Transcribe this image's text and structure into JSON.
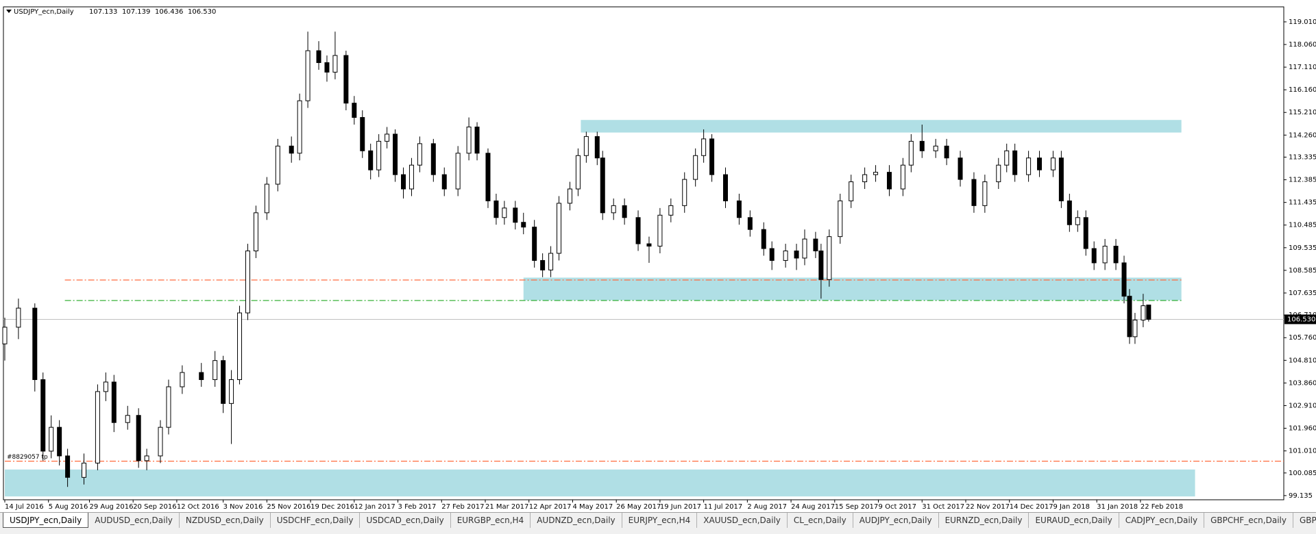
{
  "chart_data": {
    "type": "candlestick",
    "symbol": "USDJPY_ecn,Daily",
    "header_values": [
      "107.133",
      "107.139",
      "106.436",
      "106.530"
    ],
    "current_price_label": "106.530",
    "x": [
      0,
      5,
      11,
      14,
      17,
      20,
      23,
      29,
      34,
      37,
      40,
      45,
      49,
      52,
      57,
      60,
      65,
      72,
      77,
      80,
      83,
      86,
      89,
      92,
      96,
      100,
      105,
      108,
      111,
      115,
      118,
      121,
      125,
      128,
      131,
      134,
      137,
      140,
      143,
      146,
      149,
      152,
      157,
      161,
      166,
      170,
      173,
      177,
      180,
      183,
      187,
      190,
      194,
      197,
      200,
      203,
      207,
      210,
      213,
      217,
      219,
      223,
      227,
      232,
      236,
      240,
      244,
      249,
      253,
      256,
      259,
      264,
      269,
      273,
      278,
      281,
      286,
      290,
      293,
      297,
      299,
      302,
      306,
      310,
      315,
      319,
      324,
      329,
      332,
      336,
      341,
      345,
      350,
      355,
      359,
      364,
      367,
      370,
      375,
      379,
      384,
      387,
      390,
      393,
      396,
      399,
      403,
      407,
      410,
      412,
      414,
      417,
      419
    ],
    "ohlc": [
      [
        105.5,
        106.6,
        104.8,
        106.2
      ],
      [
        106.2,
        107.4,
        105.7,
        107.0
      ],
      [
        107.0,
        107.2,
        103.5,
        104.0
      ],
      [
        104.0,
        104.3,
        100.6,
        101.0
      ],
      [
        101.0,
        102.5,
        100.7,
        102.0
      ],
      [
        102.0,
        102.3,
        100.4,
        100.8
      ],
      [
        100.8,
        101.1,
        99.5,
        99.9
      ],
      [
        99.9,
        100.9,
        99.6,
        100.5
      ],
      [
        100.5,
        103.8,
        100.2,
        103.5
      ],
      [
        103.5,
        104.3,
        103.1,
        103.9
      ],
      [
        103.9,
        104.2,
        101.8,
        102.2
      ],
      [
        102.2,
        102.9,
        101.9,
        102.5
      ],
      [
        102.5,
        102.8,
        100.3,
        100.6
      ],
      [
        100.6,
        101.1,
        100.2,
        100.8
      ],
      [
        100.8,
        102.3,
        100.5,
        102.0
      ],
      [
        102.0,
        104.0,
        101.7,
        103.7
      ],
      [
        103.7,
        104.6,
        103.4,
        104.3
      ],
      [
        104.3,
        104.7,
        103.7,
        104.0
      ],
      [
        104.0,
        105.2,
        103.7,
        104.8
      ],
      [
        104.8,
        105.0,
        102.6,
        103.0
      ],
      [
        103.0,
        104.4,
        101.3,
        104.0
      ],
      [
        104.0,
        107.1,
        103.8,
        106.8
      ],
      [
        106.8,
        109.7,
        106.5,
        109.4
      ],
      [
        109.4,
        111.3,
        109.1,
        111.0
      ],
      [
        111.0,
        112.5,
        110.7,
        112.2
      ],
      [
        112.2,
        114.1,
        111.9,
        113.8
      ],
      [
        113.8,
        114.2,
        113.1,
        113.5
      ],
      [
        113.5,
        116.0,
        113.2,
        115.7
      ],
      [
        115.7,
        118.6,
        115.4,
        117.8
      ],
      [
        117.8,
        118.2,
        117.0,
        117.3
      ],
      [
        117.3,
        117.6,
        116.5,
        116.9
      ],
      [
        116.9,
        118.6,
        116.6,
        117.6
      ],
      [
        117.6,
        117.8,
        115.3,
        115.6
      ],
      [
        115.6,
        115.9,
        114.7,
        115.0
      ],
      [
        115.0,
        115.3,
        113.3,
        113.6
      ],
      [
        113.6,
        113.9,
        112.4,
        112.8
      ],
      [
        112.8,
        114.3,
        112.5,
        114.0
      ],
      [
        114.0,
        114.6,
        113.7,
        114.3
      ],
      [
        114.3,
        114.5,
        112.3,
        112.6
      ],
      [
        112.6,
        112.9,
        111.6,
        112.0
      ],
      [
        112.0,
        113.3,
        111.7,
        113.0
      ],
      [
        113.0,
        114.2,
        112.7,
        113.9
      ],
      [
        113.9,
        114.1,
        112.3,
        112.6
      ],
      [
        112.6,
        112.9,
        111.7,
        112.0
      ],
      [
        112.0,
        113.8,
        111.7,
        113.5
      ],
      [
        113.5,
        115.0,
        113.2,
        114.6
      ],
      [
        114.6,
        114.8,
        113.2,
        113.5
      ],
      [
        113.5,
        113.7,
        111.2,
        111.5
      ],
      [
        111.5,
        111.8,
        110.5,
        110.8
      ],
      [
        110.8,
        111.5,
        110.5,
        111.2
      ],
      [
        111.2,
        111.5,
        110.3,
        110.6
      ],
      [
        110.6,
        111.0,
        110.1,
        110.4
      ],
      [
        110.4,
        110.7,
        108.7,
        109.0
      ],
      [
        109.0,
        109.3,
        108.3,
        108.6
      ],
      [
        108.6,
        109.6,
        108.3,
        109.3
      ],
      [
        109.3,
        111.7,
        109.0,
        111.4
      ],
      [
        111.4,
        112.3,
        111.1,
        112.0
      ],
      [
        112.0,
        113.7,
        111.7,
        113.4
      ],
      [
        113.4,
        114.4,
        113.1,
        114.2
      ],
      [
        114.2,
        114.4,
        113.0,
        113.3
      ],
      [
        113.3,
        113.6,
        110.7,
        111.0
      ],
      [
        111.0,
        111.6,
        110.7,
        111.3
      ],
      [
        111.3,
        111.6,
        110.5,
        110.8
      ],
      [
        110.8,
        111.1,
        109.4,
        109.7
      ],
      [
        109.7,
        110.0,
        108.9,
        109.6
      ],
      [
        109.6,
        111.2,
        109.3,
        110.9
      ],
      [
        110.9,
        111.6,
        110.6,
        111.3
      ],
      [
        111.3,
        112.7,
        111.0,
        112.4
      ],
      [
        112.4,
        113.7,
        112.1,
        113.4
      ],
      [
        113.4,
        114.5,
        113.1,
        114.1
      ],
      [
        114.1,
        114.3,
        112.3,
        112.6
      ],
      [
        112.6,
        112.9,
        111.2,
        111.5
      ],
      [
        111.5,
        111.8,
        110.5,
        110.8
      ],
      [
        110.8,
        111.1,
        110.0,
        110.3
      ],
      [
        110.3,
        110.6,
        109.2,
        109.5
      ],
      [
        109.5,
        109.8,
        108.6,
        109.0
      ],
      [
        109.0,
        109.7,
        108.7,
        109.4
      ],
      [
        109.4,
        109.7,
        108.6,
        109.1
      ],
      [
        109.1,
        110.3,
        108.8,
        109.9
      ],
      [
        109.9,
        110.2,
        109.1,
        109.4
      ],
      [
        109.4,
        109.7,
        107.4,
        108.2
      ],
      [
        108.2,
        110.3,
        107.9,
        110.0
      ],
      [
        110.0,
        111.8,
        109.7,
        111.5
      ],
      [
        111.5,
        112.6,
        111.2,
        112.3
      ],
      [
        112.3,
        112.9,
        112.0,
        112.6
      ],
      [
        112.6,
        113.0,
        112.3,
        112.7
      ],
      [
        112.7,
        113.0,
        111.7,
        112.0
      ],
      [
        112.0,
        113.3,
        111.7,
        113.0
      ],
      [
        113.0,
        114.3,
        112.7,
        114.0
      ],
      [
        114.0,
        114.7,
        113.3,
        113.6
      ],
      [
        113.6,
        114.1,
        113.3,
        113.8
      ],
      [
        113.8,
        114.1,
        113.0,
        113.3
      ],
      [
        113.3,
        113.6,
        112.1,
        112.4
      ],
      [
        112.4,
        112.7,
        111.0,
        111.3
      ],
      [
        111.3,
        112.6,
        111.0,
        112.3
      ],
      [
        112.3,
        113.3,
        112.0,
        113.0
      ],
      [
        113.0,
        113.9,
        112.7,
        113.6
      ],
      [
        113.6,
        113.9,
        112.3,
        112.6
      ],
      [
        112.6,
        113.6,
        112.3,
        113.3
      ],
      [
        113.3,
        113.6,
        112.5,
        112.8
      ],
      [
        112.8,
        113.6,
        112.5,
        113.3
      ],
      [
        113.3,
        113.6,
        111.2,
        111.5
      ],
      [
        111.5,
        111.8,
        110.2,
        110.5
      ],
      [
        110.5,
        111.1,
        110.2,
        110.8
      ],
      [
        110.8,
        111.1,
        109.2,
        109.5
      ],
      [
        109.5,
        109.8,
        108.6,
        108.9
      ],
      [
        108.9,
        109.9,
        108.6,
        109.6
      ],
      [
        109.6,
        109.9,
        108.6,
        108.9
      ],
      [
        108.9,
        109.2,
        107.2,
        107.5
      ],
      [
        107.5,
        107.8,
        105.5,
        105.8
      ],
      [
        105.8,
        106.8,
        105.5,
        106.5
      ],
      [
        106.5,
        107.6,
        106.2,
        107.1
      ],
      [
        107.133,
        107.139,
        106.436,
        106.53
      ]
    ],
    "xlim": [
      -0.5,
      468.5
    ],
    "ylim": [
      98.96,
      119.64
    ],
    "xticks": [
      {
        "value": 0,
        "label": "14 Jul 2016"
      },
      {
        "value": 16,
        "label": "5 Aug 2016"
      },
      {
        "value": 31,
        "label": "29 Aug 2016"
      },
      {
        "value": 47,
        "label": "20 Sep 2016"
      },
      {
        "value": 63,
        "label": "12 Oct 2016"
      },
      {
        "value": 80,
        "label": "3 Nov 2016"
      },
      {
        "value": 96,
        "label": "25 Nov 2016"
      },
      {
        "value": 112,
        "label": "19 Dec 2016"
      },
      {
        "value": 128,
        "label": "12 Jan 2017"
      },
      {
        "value": 144,
        "label": "3 Feb 2017"
      },
      {
        "value": 160,
        "label": "27 Feb 2017"
      },
      {
        "value": 176,
        "label": "21 Mar 2017"
      },
      {
        "value": 192,
        "label": "12 Apr 2017"
      },
      {
        "value": 208,
        "label": "4 May 2017"
      },
      {
        "value": 224,
        "label": "26 May 2017"
      },
      {
        "value": 240,
        "label": "19 Jun 2017"
      },
      {
        "value": 256,
        "label": "11 Jul 2017"
      },
      {
        "value": 272,
        "label": "2 Aug 2017"
      },
      {
        "value": 288,
        "label": "24 Aug 2017"
      },
      {
        "value": 304,
        "label": "15 Sep 2017"
      },
      {
        "value": 320,
        "label": "9 Oct 2017"
      },
      {
        "value": 336,
        "label": "31 Oct 2017"
      },
      {
        "value": 352,
        "label": "22 Nov 2017"
      },
      {
        "value": 368,
        "label": "14 Dec 2017"
      },
      {
        "value": 384,
        "label": "9 Jan 2018"
      },
      {
        "value": 400,
        "label": "31 Jan 2018"
      },
      {
        "value": 416,
        "label": "22 Feb 2018"
      }
    ],
    "yticks": [
      {
        "value": 119.01,
        "label": "119.010"
      },
      {
        "value": 118.06,
        "label": "118.060"
      },
      {
        "value": 117.11,
        "label": "117.110"
      },
      {
        "value": 116.16,
        "label": "116.160"
      },
      {
        "value": 115.21,
        "label": "115.210"
      },
      {
        "value": 114.26,
        "label": "114.260"
      },
      {
        "value": 113.335,
        "label": "113.335"
      },
      {
        "value": 112.385,
        "label": "112.385"
      },
      {
        "value": 111.435,
        "label": "111.435"
      },
      {
        "value": 110.485,
        "label": "110.485"
      },
      {
        "value": 109.535,
        "label": "109.535"
      },
      {
        "value": 108.585,
        "label": "108.585"
      },
      {
        "value": 107.635,
        "label": "107.635"
      },
      {
        "value": 106.71,
        "label": "106.710"
      },
      {
        "value": 105.76,
        "label": "105.760"
      },
      {
        "value": 104.81,
        "label": "104.810"
      },
      {
        "value": 103.86,
        "label": "103.860"
      },
      {
        "value": 102.91,
        "label": "102.910"
      },
      {
        "value": 101.96,
        "label": "101.960"
      },
      {
        "value": 101.01,
        "label": "101.010"
      },
      {
        "value": 100.085,
        "label": "100.085"
      },
      {
        "value": 99.135,
        "label": "99.135"
      }
    ],
    "zones": [
      {
        "x": [
          211,
          431
        ],
        "y": [
          114.367,
          114.895
        ],
        "color": "#b0dfe5"
      },
      {
        "x": [
          190,
          431
        ],
        "y": [
          107.33,
          108.28
        ],
        "color": "#b0dfe5"
      },
      {
        "x": [
          0,
          436
        ],
        "y": [
          99.1,
          100.23
        ],
        "color": "#b0dfe5"
      }
    ],
    "levels": [
      {
        "x": [
          22,
          431
        ],
        "y": 108.18,
        "color": "#ff6a3d"
      },
      {
        "x": [
          22,
          431
        ],
        "y": 107.32,
        "color": "#22a822"
      },
      {
        "x": [
          0,
          468.5
        ],
        "y": 100.58,
        "color": "#ff6a3d"
      }
    ],
    "order_label": "#8829057 tp",
    "order_level": 100.58
  },
  "tabs": [
    "USDJPY_ecn,Daily",
    "AUDUSD_ecn,Daily",
    "NZDUSD_ecn,Daily",
    "USDCHF_ecn,Daily",
    "USDCAD_ecn,Daily",
    "EURGBP_ecn,H4",
    "AUDNZD_ecn,Daily",
    "EURJPY_ecn,H4",
    "XAUUSD_ecn,Daily",
    "CL_ecn,Daily",
    "AUDJPY_ecn,Daily",
    "EURNZD_ecn,Daily",
    "EURAUD_ecn,Daily",
    "CADJPY_ecn,Daily",
    "GBPCHF_ecn,Daily",
    "GBPJPY_ecn,Daily"
  ]
}
